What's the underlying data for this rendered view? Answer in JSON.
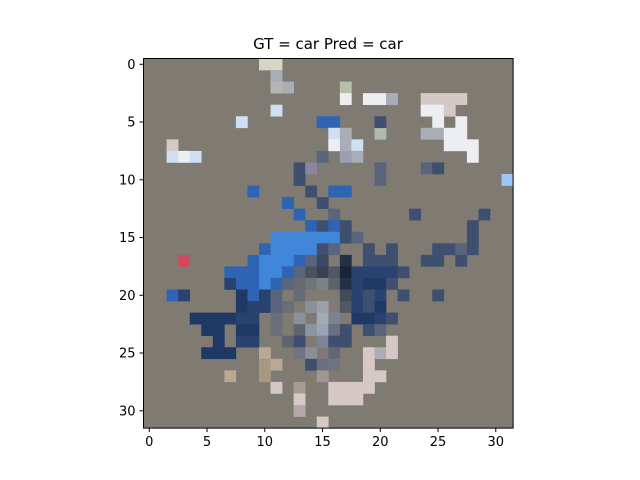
{
  "title": "GT = car Pred = car",
  "image": {
    "grid_size": 32,
    "background": "#7f7b72",
    "colors": {
      "dark_blue": "#1e3a64",
      "navy": "#2a4270",
      "mid_blue": "#2f64b4",
      "bright_blue": "#3f86d8",
      "slate": "#3e4f70",
      "gray_blue": "#58657a",
      "light_gray": "#a9aeb6",
      "pale_blue": "#cfe0f4",
      "white": "#eceef2",
      "pinkish": "#d7c8c8",
      "tan": "#b9a892",
      "red": "#d24a5a"
    }
  },
  "axes": {
    "x_ticks": [
      "0",
      "5",
      "10",
      "15",
      "20",
      "25",
      "30"
    ],
    "y_ticks": [
      "0",
      "5",
      "10",
      "15",
      "20",
      "25",
      "30"
    ]
  }
}
